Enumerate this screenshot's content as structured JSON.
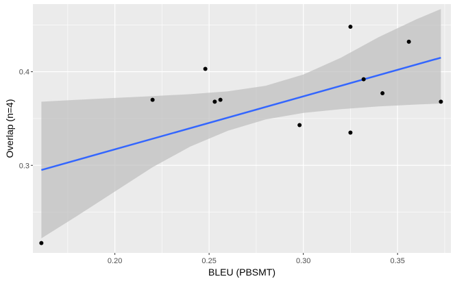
{
  "chart_data": {
    "type": "scatter",
    "xlabel": "BLEU (PBSMT)",
    "ylabel": "Overlap (n=4)",
    "xlim": [
      0.1565,
      0.3783
    ],
    "ylim": [
      0.2065,
      0.4722
    ],
    "x_ticks": [
      0.2,
      0.25,
      0.3,
      0.35
    ],
    "x_tick_labels": [
      "0.20",
      "0.25",
      "0.30",
      "0.35"
    ],
    "y_ticks": [
      0.3,
      0.4
    ],
    "y_tick_labels": [
      "0.3",
      "0.4"
    ],
    "grid": true,
    "points": [
      {
        "x": 0.161,
        "y": 0.217
      },
      {
        "x": 0.22,
        "y": 0.37
      },
      {
        "x": 0.248,
        "y": 0.403
      },
      {
        "x": 0.253,
        "y": 0.368
      },
      {
        "x": 0.256,
        "y": 0.37
      },
      {
        "x": 0.298,
        "y": 0.343
      },
      {
        "x": 0.325,
        "y": 0.335
      },
      {
        "x": 0.325,
        "y": 0.448
      },
      {
        "x": 0.332,
        "y": 0.392
      },
      {
        "x": 0.342,
        "y": 0.377
      },
      {
        "x": 0.356,
        "y": 0.432
      },
      {
        "x": 0.373,
        "y": 0.368
      }
    ],
    "trend_line": {
      "x": [
        0.161,
        0.373
      ],
      "y": [
        0.295,
        0.415
      ]
    },
    "confidence_band": {
      "x": [
        0.161,
        0.18,
        0.2,
        0.22,
        0.24,
        0.26,
        0.28,
        0.3,
        0.32,
        0.34,
        0.36,
        0.373
      ],
      "upper": [
        0.368,
        0.37,
        0.372,
        0.374,
        0.376,
        0.379,
        0.385,
        0.397,
        0.415,
        0.437,
        0.456,
        0.467
      ],
      "lower": [
        0.222,
        0.246,
        0.272,
        0.298,
        0.32,
        0.337,
        0.349,
        0.356,
        0.36,
        0.363,
        0.365,
        0.366
      ]
    },
    "colors": {
      "panel": "#ebebeb",
      "grid": "#ffffff",
      "point": "#000000",
      "line": "#3366ff",
      "band": "#bdbdbd"
    }
  }
}
